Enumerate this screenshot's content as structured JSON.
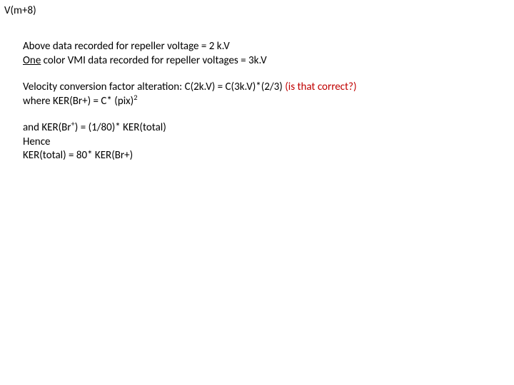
{
  "header": {
    "label": "V(m+8)"
  },
  "para1": {
    "line1": "Above data recorded for repeller voltage = 2 k.V",
    "line2_a": "One",
    "line2_b": " color VMI data recorded for repeller voltages = 3k.V"
  },
  "para2": {
    "line1_a": "Velocity conversion factor alteration: C(2k.V) = C(3k.V)*(2/3)   ",
    "line1_red": "(is that correct?)",
    "line2_a": "where  KER(Br+) = C* (pix)",
    "line2_sup": "2"
  },
  "para3": {
    "line1_a": "and KER(Br",
    "line1_sup": "+",
    "line1_b": ") = (1/80)* KER(total)",
    "line2": "Hence",
    "line3": "KER(total) = 80* KER(Br+)"
  },
  "colors": {
    "text": "#000000",
    "red": "#c00000",
    "background": "#ffffff"
  }
}
